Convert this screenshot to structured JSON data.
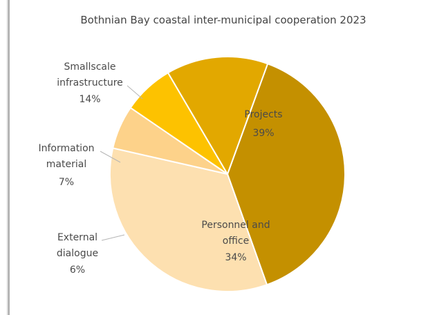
{
  "chart_data": {
    "type": "pie",
    "title": "Bothnian Bay coastal inter-municipal cooperation 2023",
    "slices": [
      {
        "label": [
          "Projects"
        ],
        "value": 39,
        "value_label": "39%",
        "color": "#c49000",
        "label_position": "inside"
      },
      {
        "label": [
          "Personnel and",
          "office"
        ],
        "value": 34,
        "value_label": "34%",
        "color": "#fde0b0",
        "label_position": "inside"
      },
      {
        "label": [
          "External",
          "dialogue"
        ],
        "value": 6,
        "value_label": "6%",
        "color": "#fdd28a",
        "label_position": "outside"
      },
      {
        "label": [
          "Information",
          "material"
        ],
        "value": 7,
        "value_label": "7%",
        "color": "#fdc200",
        "label_position": "outside"
      },
      {
        "label": [
          "Smallscale",
          "infrastructure"
        ],
        "value": 14,
        "value_label": "14%",
        "color": "#e2a800",
        "label_position": "outside"
      }
    ],
    "legend": "none"
  }
}
